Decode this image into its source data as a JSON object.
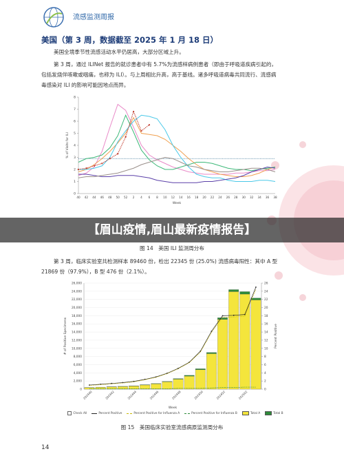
{
  "header": {
    "title": "流感监测周报"
  },
  "section": {
    "title": "美国（第 3 周，数据截至 2025 年 1 月 18 日）",
    "paragraphs": [
      "美国全境季节性流感活动水平仍居高，大部分区域上升。",
      "第 3 周，通过 ILINet 报告的就诊患者中有 5.7%为流感样病例患者（即由于呼吸道疾病引起的，包括发烧伴咳嗽或咽痛，也称为 ILI）。与上周相比升高，高于基线。诸多呼吸道病毒共同流行、流感病毒感染对 ILI 的影响可能因地点而异。",
      "第 3 周，临床实验室共检测样本 89460 份，检出 22345 份 (25.0%) 流感病毒阳性：其中 A 型 21869 份（97.9%），B 型 476 份（2.1%）。"
    ]
  },
  "banner": "【眉山疫情,眉山最新疫情报告】",
  "figure14": {
    "type": "line",
    "caption": "图 14　美国 ILI 监测周分布",
    "y_label": "% of Visits for ILI",
    "x_label": "Week",
    "categories": [
      "40",
      "42",
      "44",
      "46",
      "48",
      "50",
      "52",
      "2",
      "4",
      "6",
      "8",
      "10",
      "12",
      "14",
      "16",
      "18",
      "20",
      "22",
      "24",
      "26",
      "28",
      "30",
      "32",
      "34",
      "36",
      "38"
    ],
    "ylim": [
      0,
      8
    ],
    "yticks": [
      0,
      1,
      2,
      3,
      4,
      5,
      6,
      7,
      8
    ],
    "baseline": 2.9,
    "baseline_color": "#2b6a8f",
    "series": [
      {
        "color": "#e98ac8",
        "values": [
          1.5,
          1.7,
          2.2,
          3.5,
          5.5,
          7.4,
          6.9,
          5.5,
          4.0,
          3.2,
          2.8,
          2.5,
          2.2,
          2.0,
          1.8,
          1.7,
          1.6,
          1.6,
          1.6,
          1.6,
          1.7,
          1.7,
          1.8,
          1.9,
          1.9,
          2.0
        ]
      },
      {
        "color": "#f0a050",
        "values": [
          1.8,
          2.0,
          2.4,
          2.9,
          3.5,
          4.2,
          5.0,
          6.3,
          5.0,
          4.9,
          4.8,
          4.5,
          4.0,
          3.5,
          2.9,
          2.4,
          2.0,
          1.8,
          1.6,
          1.5,
          1.4,
          1.4,
          1.5,
          1.7,
          2.0,
          2.2
        ]
      },
      {
        "color": "#3cb878",
        "values": [
          2.6,
          2.9,
          3.0,
          3.2,
          3.8,
          4.8,
          6.5,
          5.1,
          3.6,
          2.8,
          2.3,
          2.0,
          2.0,
          2.2,
          2.4,
          2.6,
          2.6,
          2.5,
          2.3,
          2.1,
          2.0,
          2.0,
          1.9,
          2.0,
          2.1,
          2.2
        ]
      },
      {
        "color": "#49c8e8",
        "values": [
          2.0,
          2.0,
          2.1,
          2.3,
          3.0,
          4.3,
          5.2,
          6.0,
          6.5,
          6.4,
          6.2,
          5.3,
          4.0,
          3.0,
          2.2,
          1.6,
          1.4,
          1.3,
          1.3,
          1.1,
          1.0,
          1.0,
          1.0,
          1.1,
          1.1,
          1.0
        ]
      },
      {
        "color": "#5a3fa8",
        "values": [
          1.6,
          1.6,
          1.5,
          1.4,
          1.4,
          1.5,
          1.5,
          1.5,
          1.4,
          1.3,
          1.1,
          1.0,
          0.9,
          0.9,
          0.9,
          0.9,
          1.0,
          1.0,
          1.1,
          1.2,
          1.3,
          1.5,
          1.8,
          2.0,
          2.2,
          2.1
        ]
      },
      {
        "color": "#9a8f8a",
        "values": [
          1.3,
          1.4,
          1.4,
          1.5,
          1.6,
          1.7,
          1.9,
          2.1,
          2.4,
          2.6,
          2.8,
          3.0,
          2.9,
          2.6,
          2.3,
          2.2,
          2.0,
          1.9,
          1.8,
          1.8,
          1.9,
          2.0,
          2.1,
          2.1,
          2.0,
          1.8
        ]
      },
      {
        "color": "#c0392b",
        "markers": true,
        "dashed": true,
        "values": [
          2.0,
          2.1,
          2.3,
          2.5,
          2.9,
          3.3,
          4.7,
          6.8,
          5.2,
          5.7,
          null,
          null,
          null,
          null,
          null,
          null,
          null,
          null,
          null,
          null,
          null,
          null,
          null,
          null,
          null,
          null
        ]
      }
    ]
  },
  "figure15": {
    "type": "bar",
    "caption": "图 15　美国临床实验室流感病原监测周分布",
    "y_label": "# of Positive Specimens",
    "y2_label": "Percent Positive",
    "x_label": "Week",
    "check_all": "Check All",
    "categories": [
      "202440",
      null,
      "202442",
      null,
      "202444",
      null,
      "202446",
      null,
      "202448",
      null,
      "202450",
      null,
      "202452",
      null,
      "202502",
      null
    ],
    "ylim": [
      0,
      26000
    ],
    "yticks": [
      {
        "value": 0,
        "label": "0"
      },
      {
        "value": 2000,
        "label": "2,000"
      },
      {
        "value": 4000,
        "label": "4,000"
      },
      {
        "value": 6000,
        "label": "6,000"
      },
      {
        "value": 8000,
        "label": "8,000"
      },
      {
        "value": 10000,
        "label": "10,000"
      },
      {
        "value": 12000,
        "label": "12,000"
      },
      {
        "value": 14000,
        "label": "14,000"
      },
      {
        "value": 16000,
        "label": "16,000"
      },
      {
        "value": 18000,
        "label": "18,000"
      },
      {
        "value": 20000,
        "label": "20,000"
      },
      {
        "value": 22000,
        "label": "22,000"
      },
      {
        "value": 24000,
        "label": "24,000"
      },
      {
        "value": 26000,
        "label": "26,000"
      }
    ],
    "y2lim": [
      0,
      26
    ],
    "y2ticks": [
      0,
      2,
      4,
      6,
      8,
      10,
      12,
      14,
      16,
      18,
      20,
      22,
      24,
      26
    ],
    "series": [
      {
        "name": "Percent Positive",
        "kind": "line",
        "axis": "y2",
        "color": "#222222",
        "markers": true,
        "values": [
          1.0,
          1.2,
          1.4,
          1.6,
          1.9,
          2.4,
          3.0,
          3.9,
          5.1,
          6.6,
          9.3,
          14.2,
          18.0,
          18.1,
          18.3,
          25.0
        ]
      },
      {
        "name": "Percent Positive for Influenza A",
        "kind": "line",
        "axis": "y2",
        "color": "#c9b800",
        "dashed": true,
        "values": [
          0.9,
          1.1,
          1.3,
          1.5,
          1.8,
          2.3,
          2.9,
          3.8,
          5.0,
          6.5,
          9.1,
          13.9,
          17.6,
          17.7,
          17.9,
          24.5
        ]
      },
      {
        "name": "Percent Positive for Influenza B",
        "kind": "line",
        "axis": "y2",
        "color": "#2e8b3a",
        "dashed": true,
        "values": [
          0.1,
          0.1,
          0.1,
          0.1,
          0.1,
          0.1,
          0.1,
          0.1,
          0.2,
          0.2,
          0.2,
          0.3,
          0.4,
          0.4,
          0.5,
          0.5
        ]
      },
      {
        "name": "Total A",
        "kind": "bar",
        "color": "#f4e53c",
        "values": [
          380,
          450,
          560,
          640,
          760,
          1020,
          1320,
          1800,
          2450,
          3200,
          4750,
          8700,
          17100,
          23900,
          23300,
          21869
        ]
      },
      {
        "name": "Total B",
        "kind": "bar",
        "color": "#2e8b3a",
        "values": [
          40,
          45,
          50,
          60,
          70,
          80,
          90,
          110,
          150,
          200,
          250,
          300,
          400,
          500,
          600,
          476
        ]
      }
    ]
  },
  "page_number": "14"
}
